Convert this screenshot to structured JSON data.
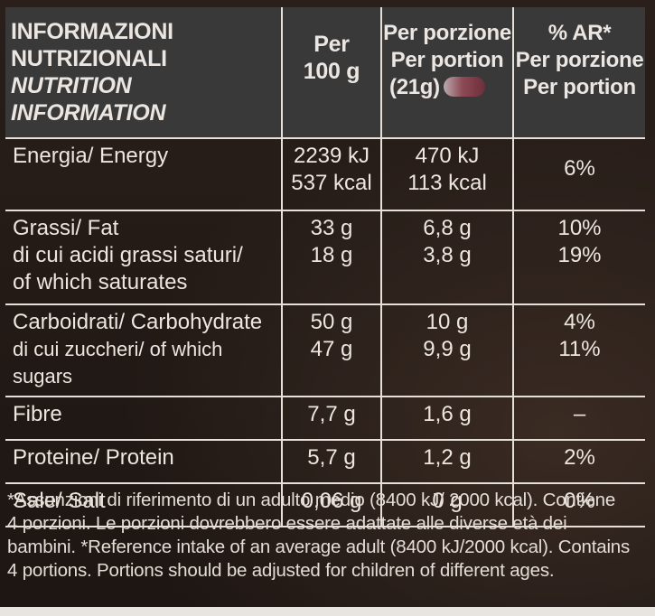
{
  "header": {
    "col1_line1": "INFORMAZIONI",
    "col1_line2": "NUTRIZIONALI",
    "col1_line3": "NUTRITION INFORMATION",
    "col2_line1": "Per",
    "col2_line2": "100 g",
    "col3_line1": "Per porzione",
    "col3_line2": "Per portion",
    "col3_line3": "(21g)",
    "col4_line1": "% AR*",
    "col4_line2": "Per porzione",
    "col4_line3": "Per portion"
  },
  "rows": {
    "energy": {
      "label": "Energia/ Energy",
      "per100_kj": "2239 kJ",
      "per100_kcal": "537 kcal",
      "portion_kj": "470 kJ",
      "portion_kcal": "113 kcal",
      "ar": "6%"
    },
    "fat": {
      "label": "Grassi/ Fat",
      "sub_label_1": "di cui acidi grassi saturi/",
      "sub_label_2": "of which saturates",
      "per100": "33 g",
      "per100_sub": "18 g",
      "portion": "6,8 g",
      "portion_sub": "3,8 g",
      "ar": "10%",
      "ar_sub": "19%"
    },
    "carb": {
      "label": "Carboidrati/ Carbohydrate",
      "sub_label": "di cui zuccheri/ of which sugars",
      "per100": "50 g",
      "per100_sub": "47 g",
      "portion": "10 g",
      "portion_sub": "9,9 g",
      "ar": "4%",
      "ar_sub": "11%"
    },
    "fibre": {
      "label": "Fibre",
      "per100": "7,7 g",
      "portion": "1,6 g",
      "ar": "–"
    },
    "protein": {
      "label": "Proteine/ Protein",
      "per100": "5,7 g",
      "portion": "1,2 g",
      "ar": "2%"
    },
    "salt": {
      "label": "Sale/ Salt",
      "per100": "0,06 g",
      "portion": "0 g",
      "ar": "0%"
    }
  },
  "footnote": {
    "line1": "*Assunzioni di riferimento di un adulto medio (8400 kJ/ 2000 kcal). Contiene",
    "line2": "4 porzioni. Le porzioni dovrebbero essere adattate alle diverse età dei",
    "line3": "bambini. *Reference intake of an average adult (8400 kJ/2000 kcal). Contains",
    "line4": "4 portions. Portions should be adjusted for children of different ages."
  }
}
